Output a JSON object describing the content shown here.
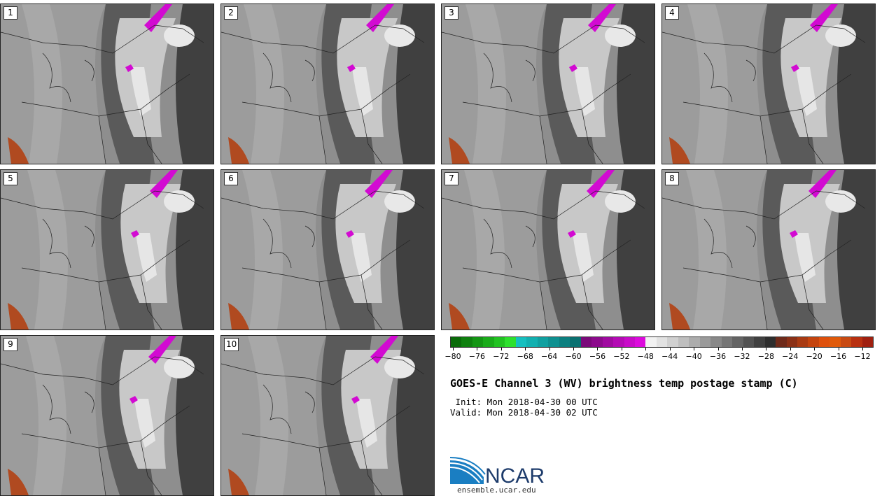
{
  "panels": [
    {
      "label": "1"
    },
    {
      "label": "2"
    },
    {
      "label": "3"
    },
    {
      "label": "4"
    },
    {
      "label": "5"
    },
    {
      "label": "6"
    },
    {
      "label": "7"
    },
    {
      "label": "8"
    },
    {
      "label": "9"
    },
    {
      "label": "10"
    }
  ],
  "colorbar": {
    "colors": [
      "#0a6b0a",
      "#0f800f",
      "#149614",
      "#1aac1a",
      "#22c322",
      "#2ee02e",
      "#16bfbf",
      "#12b0b0",
      "#10a0a0",
      "#0e9090",
      "#0c8080",
      "#0a7070",
      "#7a0a7a",
      "#8c0a8c",
      "#a00aa0",
      "#b40ab4",
      "#c80ac8",
      "#dc0adc",
      "#f2f2f2",
      "#e2e2e2",
      "#d0d0d0",
      "#bebebe",
      "#acacac",
      "#9a9a9a",
      "#888888",
      "#767676",
      "#646464",
      "#525252",
      "#404040",
      "#2e2e2e",
      "#6e2a1a",
      "#8a3016",
      "#a83a12",
      "#c4440e",
      "#de500c",
      "#e05a0a",
      "#c84a12",
      "#b83010",
      "#a02010"
    ],
    "tick_labels": [
      "-80",
      "-76",
      "-72",
      "-68",
      "-64",
      "-60",
      "-56",
      "-52",
      "-48",
      "-44",
      "-40",
      "-36",
      "-32",
      "-28",
      "-24",
      "-20",
      "-16",
      "-12"
    ]
  },
  "title": "GOES-E Channel 3 (WV) brightness temp postage stamp (C)",
  "init": " Init: Mon 2018-04-30 00 UTC",
  "valid": "Valid: Mon 2018-04-30 02 UTC",
  "logo_text": "NCAR",
  "site": "ensemble.ucar.edu"
}
